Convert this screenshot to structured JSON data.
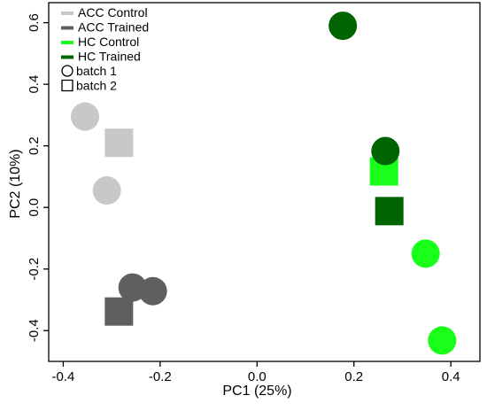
{
  "chart_data": {
    "type": "scatter",
    "xlabel": "PC1 (25%)",
    "ylabel": "PC2 (10%)",
    "xlim": [
      -0.43,
      0.46
    ],
    "ylim": [
      -0.5,
      0.665
    ],
    "x_ticks": [
      {
        "value": -0.4,
        "label": "-0.4"
      },
      {
        "value": -0.2,
        "label": "-0.2"
      },
      {
        "value": 0.0,
        "label": "0.0"
      },
      {
        "value": 0.2,
        "label": "0.2"
      },
      {
        "value": 0.4,
        "label": "0.4"
      }
    ],
    "y_ticks": [
      {
        "value": -0.4,
        "label": "-0.4"
      },
      {
        "value": -0.2,
        "label": "-0.2"
      },
      {
        "value": 0.0,
        "label": "0.0"
      },
      {
        "value": 0.2,
        "label": "0.2"
      },
      {
        "value": 0.4,
        "label": "0.4"
      },
      {
        "value": 0.6,
        "label": "0.6"
      }
    ],
    "legend_position": "top-left",
    "grid": false,
    "series": [
      {
        "name": "ACC Control",
        "color": "#c8c8c8",
        "points": [
          {
            "x": -0.355,
            "y": 0.295,
            "batch": "batch 1"
          },
          {
            "x": -0.31,
            "y": 0.055,
            "batch": "batch 1"
          },
          {
            "x": -0.285,
            "y": 0.21,
            "batch": "batch 2"
          }
        ]
      },
      {
        "name": "ACC Trained",
        "color": "#5f5f5f",
        "points": [
          {
            "x": -0.257,
            "y": -0.26,
            "batch": "batch 1"
          },
          {
            "x": -0.215,
            "y": -0.272,
            "batch": "batch 1"
          },
          {
            "x": -0.285,
            "y": -0.338,
            "batch": "batch 2"
          }
        ]
      },
      {
        "name": "HC Control",
        "color": "#1aff1a",
        "points": [
          {
            "x": 0.348,
            "y": -0.15,
            "batch": "batch 1"
          },
          {
            "x": 0.382,
            "y": -0.432,
            "batch": "batch 1"
          },
          {
            "x": 0.262,
            "y": 0.117,
            "batch": "batch 2"
          }
        ]
      },
      {
        "name": "HC Trained",
        "color": "#006400",
        "points": [
          {
            "x": 0.177,
            "y": 0.59,
            "batch": "batch 1"
          },
          {
            "x": 0.265,
            "y": 0.183,
            "batch": "batch 1"
          },
          {
            "x": 0.273,
            "y": -0.012,
            "batch": "batch 2"
          }
        ]
      }
    ],
    "legend": {
      "colors": [
        {
          "label": "ACC Control",
          "color": "#c8c8c8"
        },
        {
          "label": "ACC Trained",
          "color": "#5f5f5f"
        },
        {
          "label": "HC Control",
          "color": "#1aff1a"
        },
        {
          "label": "HC Trained",
          "color": "#006400"
        }
      ],
      "shapes": [
        {
          "label": "batch 1",
          "shape": "circle"
        },
        {
          "label": "batch 2",
          "shape": "square"
        }
      ]
    }
  }
}
